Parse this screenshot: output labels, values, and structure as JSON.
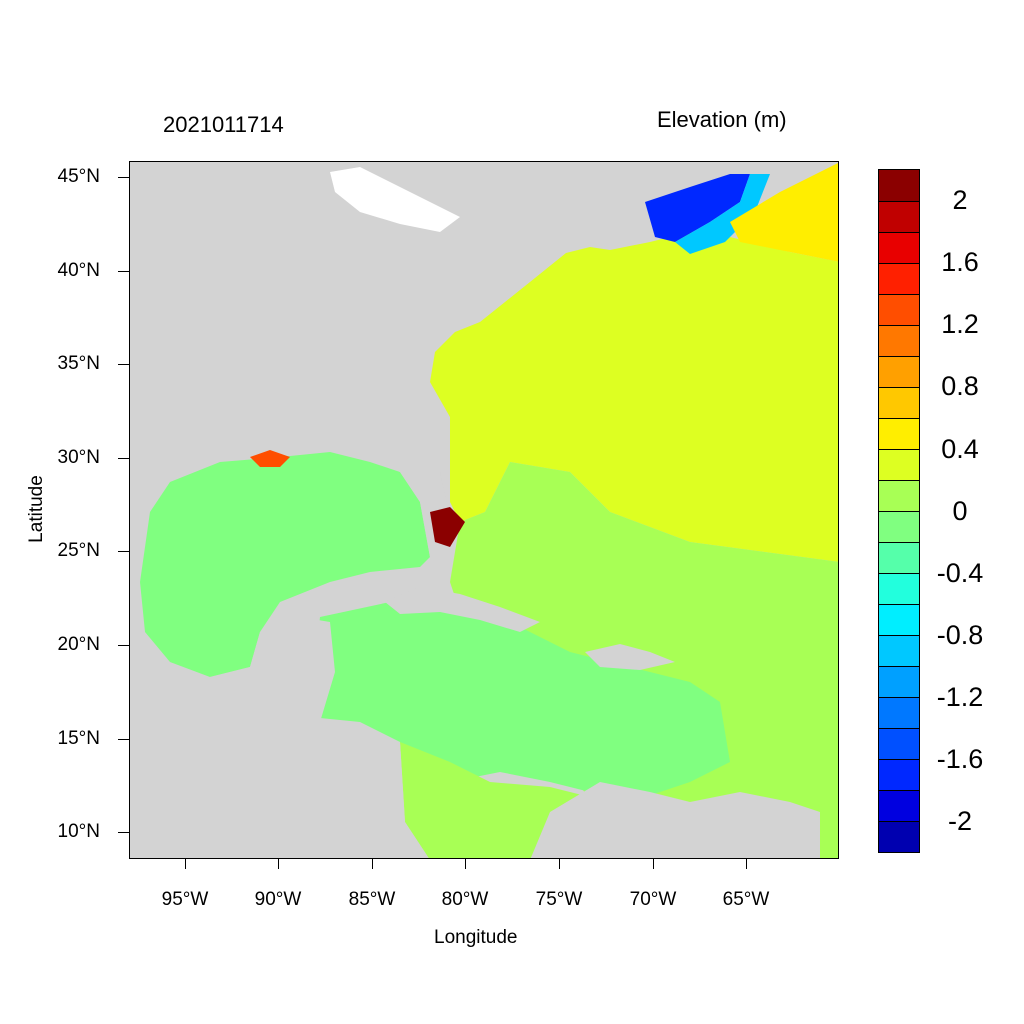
{
  "header": {
    "timestamp": "2021011714",
    "field_title": "Elevation (m)"
  },
  "axes": {
    "xlabel": "Longitude",
    "ylabel": "Latitude",
    "lat_ticks": [
      "45°N",
      "40°N",
      "35°N",
      "30°N",
      "25°N",
      "20°N",
      "15°N",
      "10°N"
    ],
    "lon_ticks": [
      "95°W",
      "90°W",
      "85°W",
      "80°W",
      "75°W",
      "70°W",
      "65°W"
    ],
    "lat_range": [
      8.5,
      46
    ],
    "lon_range": [
      -98,
      -60
    ]
  },
  "colorbar": {
    "labels": [
      "2",
      "1.6",
      "1.2",
      "0.8",
      "0.4",
      "0",
      "-0.4",
      "-0.8",
      "-1.2",
      "-1.6",
      "-2"
    ],
    "colors": [
      "#8b0000",
      "#c00000",
      "#e80000",
      "#ff2000",
      "#ff4e00",
      "#ff7800",
      "#ffa000",
      "#ffc800",
      "#ffee00",
      "#ddff22",
      "#a8ff55",
      "#80ff80",
      "#55ffaa",
      "#22ffdd",
      "#00eeff",
      "#00c8ff",
      "#00a0ff",
      "#0078ff",
      "#0050ff",
      "#0028ff",
      "#0000e0",
      "#0000b0"
    ]
  },
  "map_colors": {
    "land": "#d3d3d3",
    "atlantic": "#ddff22",
    "caribbean": "#80ff80",
    "gulf": "#80ff80",
    "bahamas": "#a8ff55",
    "low_surge": "#0028ff",
    "high_surge": "#8b0000"
  }
}
